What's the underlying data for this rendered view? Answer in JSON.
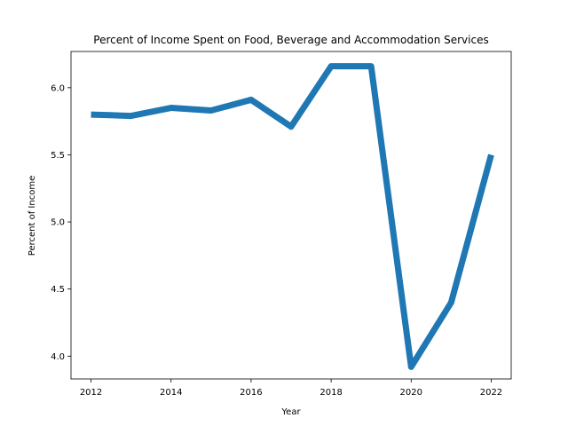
{
  "chart_data": {
    "type": "line",
    "title": "Percent of Income Spent on Food, Beverage and Accommodation Services",
    "xlabel": "Year",
    "ylabel": "Percent of Income",
    "x": [
      2012,
      2013,
      2014,
      2015,
      2016,
      2017,
      2018,
      2019,
      2020,
      2021,
      2022
    ],
    "series": [
      {
        "values": [
          5.8,
          5.79,
          5.85,
          5.83,
          5.91,
          5.71,
          6.16,
          6.16,
          3.92,
          4.4,
          5.5
        ],
        "color": "#1f77b4"
      }
    ],
    "xticks": [
      2012,
      2014,
      2016,
      2018,
      2020,
      2022
    ],
    "yticks": [
      4.0,
      4.5,
      5.0,
      5.5,
      6.0
    ],
    "xtick_labels": [
      "2012",
      "2014",
      "2016",
      "2018",
      "2020",
      "2022"
    ],
    "ytick_labels": [
      "4.0",
      "4.5",
      "5.0",
      "5.5",
      "6.0"
    ],
    "xlim": [
      2011.5,
      2022.5
    ],
    "ylim": [
      3.83,
      6.27
    ],
    "grid": false,
    "legend": "none"
  }
}
